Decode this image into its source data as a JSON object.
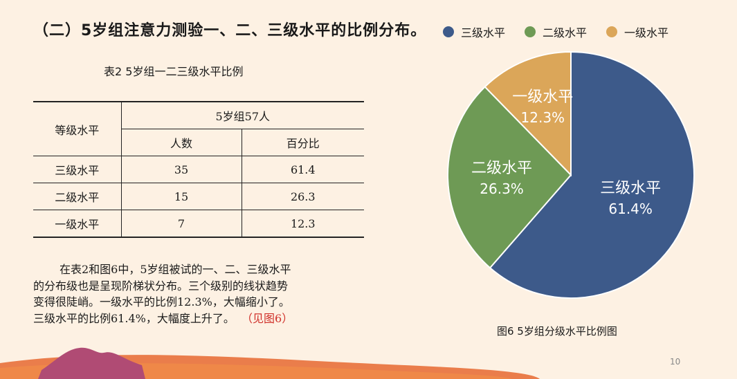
{
  "title": "（二）5岁组注意力测验一、二、三级水平的比例分布。",
  "table": {
    "caption": "表2  5岁组一二三级水平比例",
    "header_row_label": "等级水平",
    "group_header": "5岁组57人",
    "col_count": "人数",
    "col_percent": "百分比",
    "rows": [
      {
        "level": "三级水平",
        "count": "35",
        "percent": "61.4"
      },
      {
        "level": "二级水平",
        "count": "15",
        "percent": "26.3"
      },
      {
        "level": "一级水平",
        "count": "7",
        "percent": "12.3"
      }
    ]
  },
  "paragraph": {
    "lines": [
      "在表2和图6中，5岁组被试的一、二、三级水平",
      "的分布级也是呈现阶梯状分布。三个级别的线状趋势",
      "变得很陡峭。一级水平的比例12.3%，大幅缩小了。",
      "三级水平的比例61.4%，大幅度上升了。"
    ],
    "ref": "（见图6）"
  },
  "chart_data": {
    "type": "pie",
    "title": "",
    "caption": "图6    5岁组分级水平比例图",
    "legend_position": "top",
    "slices": [
      {
        "name": "三级水平",
        "value": 61.4,
        "label": "61.4%",
        "color": "#3d5a8a"
      },
      {
        "name": "二级水平",
        "value": 26.3,
        "label": "26.3%",
        "color": "#6e9a55"
      },
      {
        "name": "一级水平",
        "value": 12.3,
        "label": "12.3%",
        "color": "#dba659"
      }
    ]
  },
  "page_number": "10",
  "colors": {
    "background": "#fdf1e3",
    "ref_text": "#d0302a",
    "wave_orange": "#e8703a",
    "wave_purple": "#b04b74"
  }
}
